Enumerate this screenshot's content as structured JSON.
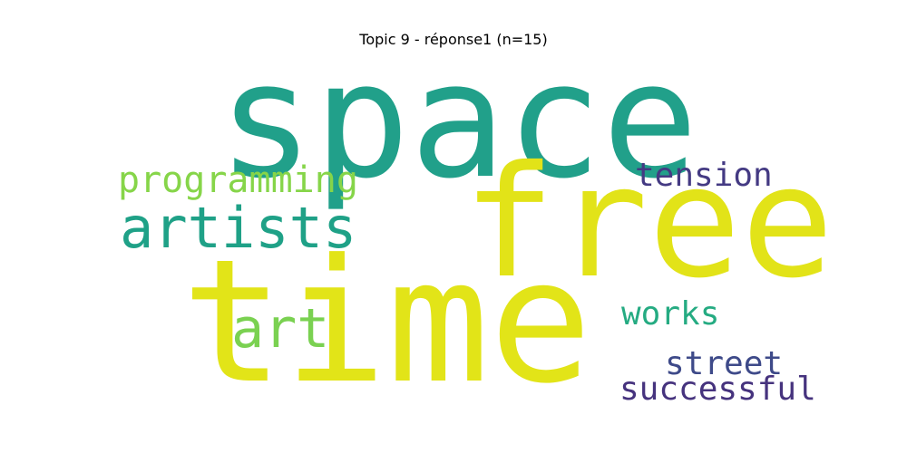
{
  "title": "Topic 9 - réponse1 (n=15)",
  "words": [
    {
      "text": "space",
      "color": "#21a08a"
    },
    {
      "text": "free",
      "color": "#e2e318"
    },
    {
      "text": "time",
      "color": "#e2e418"
    },
    {
      "text": "artists",
      "color": "#1fa187"
    },
    {
      "text": "programming",
      "color": "#86d549"
    },
    {
      "text": "tension",
      "color": "#443a83"
    },
    {
      "text": "art",
      "color": "#7ad151"
    },
    {
      "text": "works",
      "color": "#25ab82"
    },
    {
      "text": "street",
      "color": "#3e4a89"
    },
    {
      "text": "successful",
      "color": "#46337e"
    }
  ]
}
